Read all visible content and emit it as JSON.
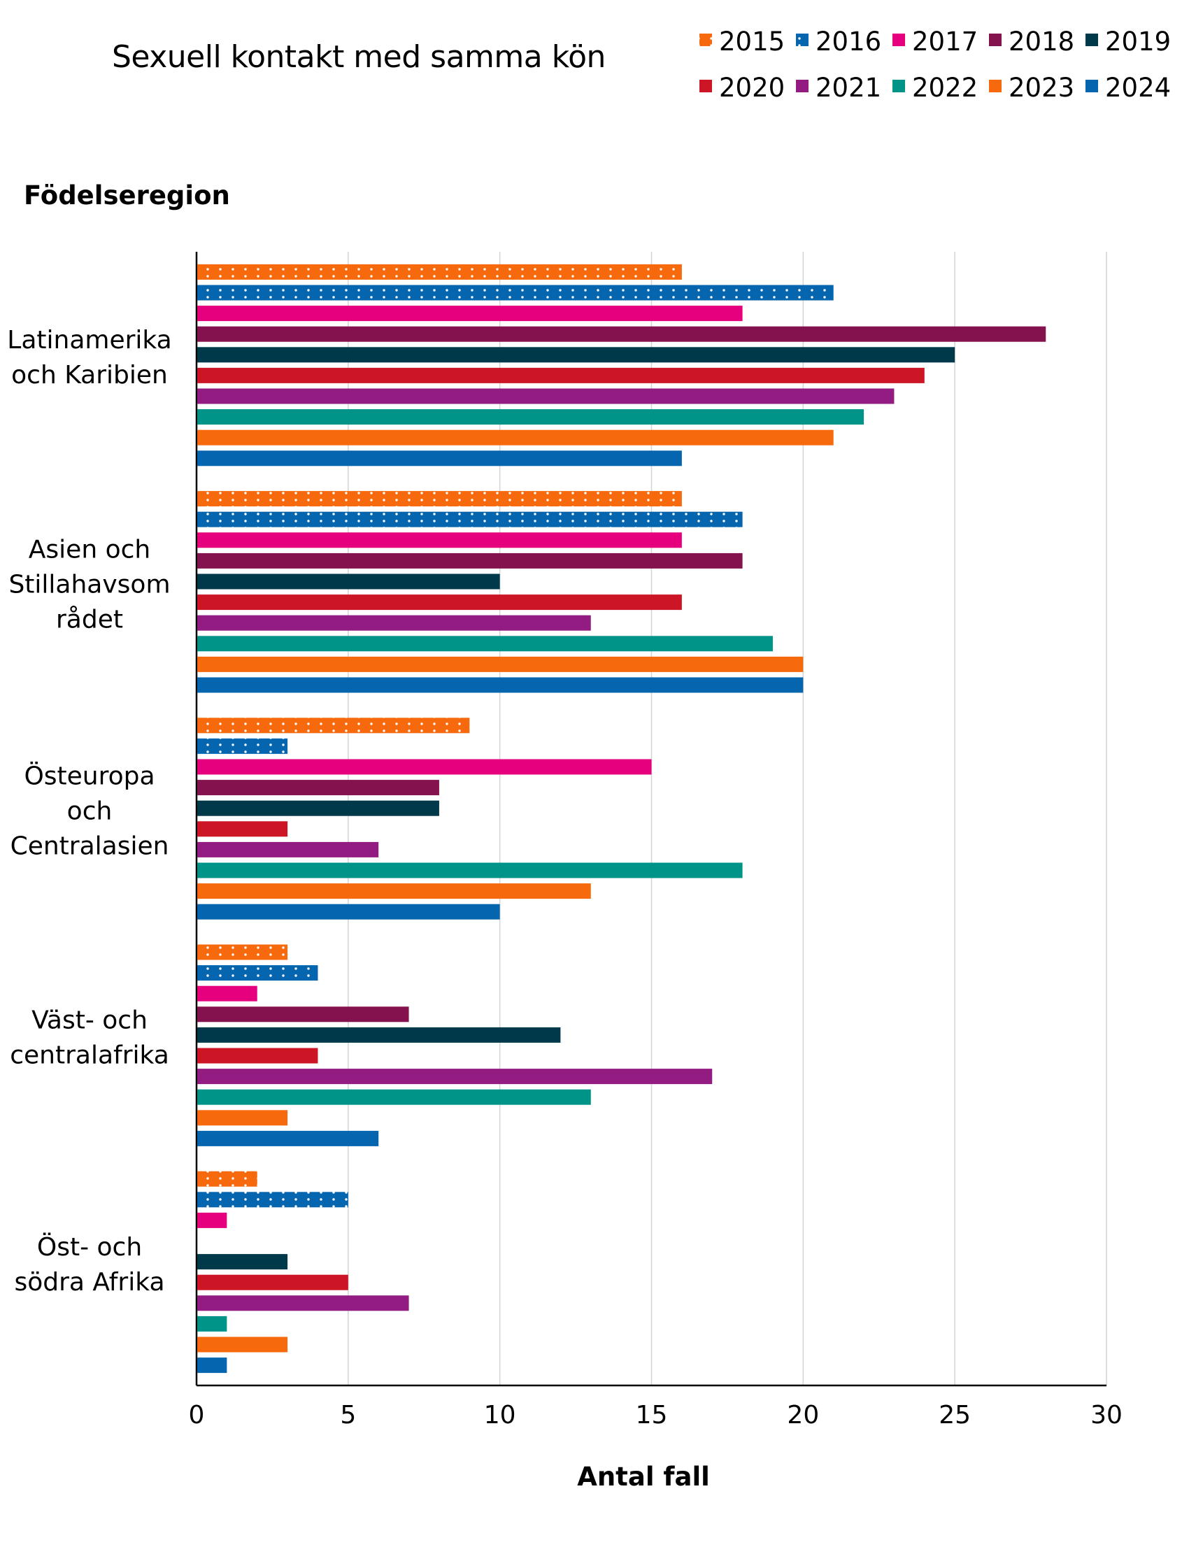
{
  "chart_data": {
    "type": "bar",
    "orientation": "horizontal",
    "title": "Sexuell kontakt med samma kön",
    "ylabel": "Födelseregion",
    "xlabel": "Antal fall",
    "xlim": [
      0,
      30
    ],
    "xticks": [
      "0",
      "5",
      "10",
      "15",
      "20",
      "25",
      "30"
    ],
    "grid": "vertical",
    "legend_position": "top-right",
    "categories": [
      [
        "Latinamerika",
        "och Karibien"
      ],
      [
        "Asien och",
        "Stillahavsom",
        "rådet"
      ],
      [
        "Östeuropa",
        "och",
        "Centralasien"
      ],
      [
        "Väst- och",
        "centralafrika"
      ],
      [
        "Öst- och",
        "södra Afrika"
      ]
    ],
    "series": [
      {
        "name": "2015",
        "color": "#f7690d",
        "pattern": "dotted",
        "values": [
          16,
          16,
          9,
          3,
          2
        ]
      },
      {
        "name": "2016",
        "color": "#0565ae",
        "pattern": "dotted",
        "values": [
          21,
          18,
          3,
          4,
          5
        ]
      },
      {
        "name": "2017",
        "color": "#e6007e",
        "values": [
          18,
          16,
          15,
          2,
          1
        ]
      },
      {
        "name": "2018",
        "color": "#83124e",
        "values": [
          28,
          18,
          8,
          7,
          0
        ]
      },
      {
        "name": "2019",
        "color": "#00394a",
        "values": [
          25,
          10,
          8,
          12,
          3
        ]
      },
      {
        "name": "2020",
        "color": "#cc1626",
        "values": [
          24,
          16,
          3,
          4,
          5
        ]
      },
      {
        "name": "2021",
        "color": "#921c81",
        "values": [
          23,
          13,
          6,
          17,
          7
        ]
      },
      {
        "name": "2022",
        "color": "#009488",
        "values": [
          22,
          19,
          18,
          13,
          1
        ]
      },
      {
        "name": "2023",
        "color": "#f7690d",
        "values": [
          21,
          20,
          13,
          3,
          3
        ]
      },
      {
        "name": "2024",
        "color": "#0565ae",
        "values": [
          16,
          20,
          10,
          6,
          1
        ]
      }
    ]
  }
}
